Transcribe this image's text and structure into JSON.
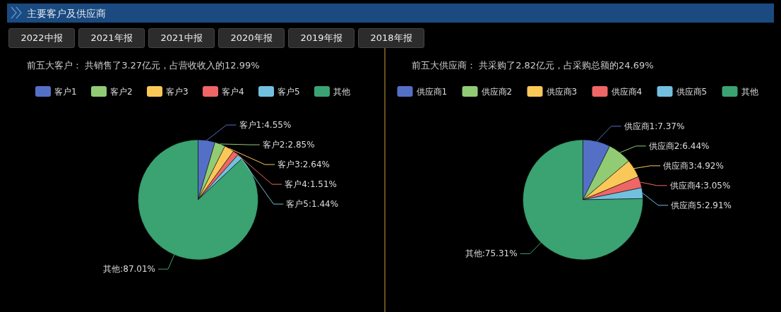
{
  "chart_data": [
    {
      "type": "pie",
      "title": "主要客户及供应商",
      "annotations": [
        "2022中报",
        "2021年报",
        "2021中报",
        "2020年报",
        "2019年报",
        "2018年报"
      ],
      "subtitle": "前五大客户： 共销售了3.27亿元，占营收收入的12.99%",
      "legend": "top",
      "categories": [
        "客户1",
        "客户2",
        "客户3",
        "客户4",
        "客户5",
        "其他"
      ],
      "values": [
        4.55,
        2.85,
        2.64,
        1.51,
        1.44,
        87.01
      ],
      "colors": [
        "#5470c6",
        "#91cc75",
        "#fac858",
        "#ee6666",
        "#73c0de",
        "#3ba272"
      ],
      "value_labels": [
        "客户1:4.55%",
        "客户2:2.85%",
        "客户3:2.64%",
        "客户4:1.51%",
        "客户5:1.44%",
        "其他:87.01%"
      ]
    },
    {
      "type": "pie",
      "subtitle": "前五大供应商： 共采购了2.82亿元，占采购总额的24.69%",
      "legend": "top",
      "categories": [
        "供应商1",
        "供应商2",
        "供应商3",
        "供应商4",
        "供应商5",
        "其他"
      ],
      "values": [
        7.37,
        6.44,
        4.92,
        3.05,
        2.91,
        75.31
      ],
      "colors": [
        "#5470c6",
        "#91cc75",
        "#fac858",
        "#ee6666",
        "#73c0de",
        "#3ba272"
      ],
      "value_labels": [
        "供应商1:7.37%",
        "供应商2:6.44%",
        "供应商3:4.92%",
        "供应商4:3.05%",
        "供应商5:2.91%",
        "其他:75.31%"
      ]
    }
  ]
}
